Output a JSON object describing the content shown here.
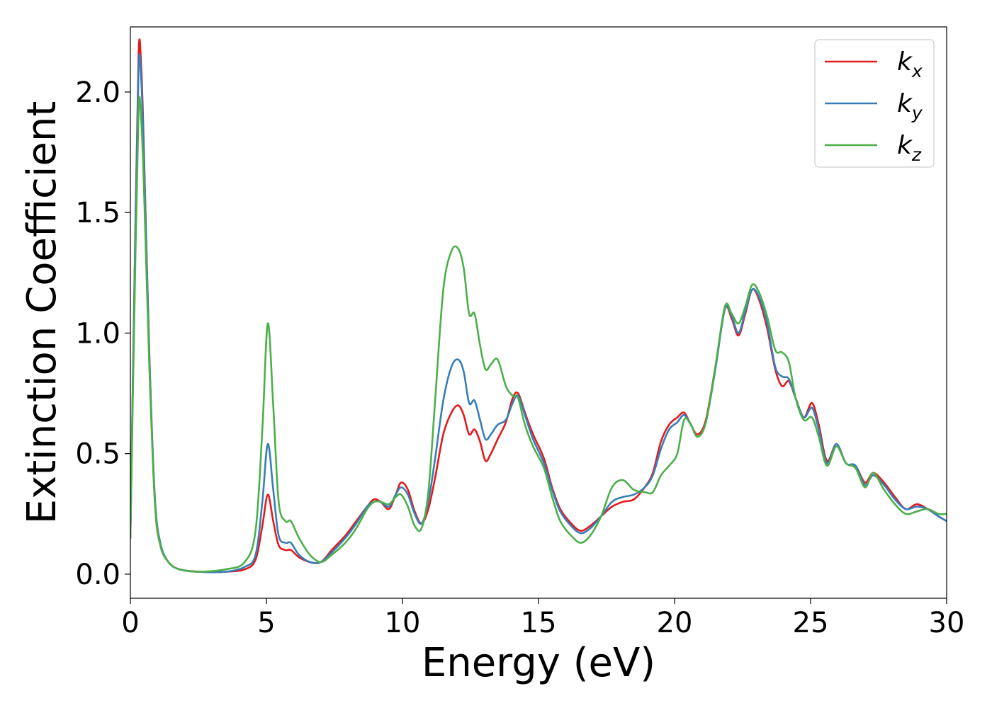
{
  "chart_data": {
    "type": "line",
    "title": "",
    "xlabel": "Energy (eV)",
    "ylabel": "Extinction Coefficient",
    "xlim": [
      0,
      30
    ],
    "ylim": [
      -0.1,
      2.27
    ],
    "xticks": [
      0,
      5,
      10,
      15,
      20,
      25,
      30
    ],
    "xtick_labels": [
      "0",
      "5",
      "10",
      "15",
      "20",
      "25",
      "30"
    ],
    "yticks": [
      0.0,
      0.5,
      1.0,
      1.5,
      2.0
    ],
    "ytick_labels": [
      "0.0",
      "0.5",
      "1.0",
      "1.5",
      "2.0"
    ],
    "grid": false,
    "legend_position": "top-right",
    "series": [
      {
        "name": "k_x",
        "label_base": "k",
        "label_sub": "x",
        "color": "#e41a1c",
        "points": [
          [
            0,
            0.15
          ],
          [
            0.15,
            1.2
          ],
          [
            0.3,
            2.15
          ],
          [
            0.4,
            2.1
          ],
          [
            0.5,
            1.75
          ],
          [
            0.7,
            0.9
          ],
          [
            0.9,
            0.3
          ],
          [
            1.1,
            0.12
          ],
          [
            1.4,
            0.05
          ],
          [
            1.8,
            0.02
          ],
          [
            2.5,
            0.01
          ],
          [
            3.5,
            0.01
          ],
          [
            4.2,
            0.02
          ],
          [
            4.6,
            0.06
          ],
          [
            4.85,
            0.2
          ],
          [
            5.05,
            0.33
          ],
          [
            5.25,
            0.22
          ],
          [
            5.45,
            0.12
          ],
          [
            5.7,
            0.1
          ],
          [
            5.9,
            0.1
          ],
          [
            6.2,
            0.07
          ],
          [
            6.6,
            0.05
          ],
          [
            7.0,
            0.05
          ],
          [
            7.4,
            0.1
          ],
          [
            7.9,
            0.16
          ],
          [
            8.3,
            0.22
          ],
          [
            8.7,
            0.28
          ],
          [
            8.95,
            0.31
          ],
          [
            9.2,
            0.3
          ],
          [
            9.5,
            0.27
          ],
          [
            9.75,
            0.33
          ],
          [
            9.95,
            0.38
          ],
          [
            10.2,
            0.35
          ],
          [
            10.45,
            0.26
          ],
          [
            10.7,
            0.21
          ],
          [
            10.95,
            0.27
          ],
          [
            11.2,
            0.4
          ],
          [
            11.5,
            0.58
          ],
          [
            11.8,
            0.67
          ],
          [
            12.05,
            0.7
          ],
          [
            12.25,
            0.66
          ],
          [
            12.45,
            0.58
          ],
          [
            12.65,
            0.6
          ],
          [
            12.85,
            0.55
          ],
          [
            13.05,
            0.47
          ],
          [
            13.25,
            0.5
          ],
          [
            13.5,
            0.56
          ],
          [
            13.8,
            0.63
          ],
          [
            14.05,
            0.73
          ],
          [
            14.25,
            0.75
          ],
          [
            14.5,
            0.67
          ],
          [
            14.8,
            0.58
          ],
          [
            15.2,
            0.48
          ],
          [
            15.5,
            0.36
          ],
          [
            15.8,
            0.27
          ],
          [
            16.2,
            0.21
          ],
          [
            16.55,
            0.18
          ],
          [
            16.9,
            0.2
          ],
          [
            17.3,
            0.24
          ],
          [
            17.7,
            0.28
          ],
          [
            18.1,
            0.3
          ],
          [
            18.5,
            0.31
          ],
          [
            18.9,
            0.36
          ],
          [
            19.2,
            0.42
          ],
          [
            19.5,
            0.55
          ],
          [
            19.8,
            0.62
          ],
          [
            20.1,
            0.65
          ],
          [
            20.35,
            0.67
          ],
          [
            20.6,
            0.62
          ],
          [
            20.85,
            0.58
          ],
          [
            21.15,
            0.64
          ],
          [
            21.5,
            0.86
          ],
          [
            21.85,
            1.1
          ],
          [
            22.1,
            1.06
          ],
          [
            22.35,
            0.99
          ],
          [
            22.6,
            1.08
          ],
          [
            22.85,
            1.18
          ],
          [
            23.1,
            1.14
          ],
          [
            23.4,
            1.02
          ],
          [
            23.7,
            0.85
          ],
          [
            23.95,
            0.78
          ],
          [
            24.2,
            0.8
          ],
          [
            24.45,
            0.73
          ],
          [
            24.75,
            0.65
          ],
          [
            25.05,
            0.71
          ],
          [
            25.3,
            0.62
          ],
          [
            25.6,
            0.47
          ],
          [
            25.95,
            0.54
          ],
          [
            26.3,
            0.46
          ],
          [
            26.65,
            0.45
          ],
          [
            27.0,
            0.38
          ],
          [
            27.3,
            0.42
          ],
          [
            27.7,
            0.38
          ],
          [
            28.1,
            0.32
          ],
          [
            28.5,
            0.27
          ],
          [
            28.9,
            0.29
          ],
          [
            29.3,
            0.27
          ],
          [
            29.7,
            0.24
          ],
          [
            30,
            0.22
          ]
        ]
      },
      {
        "name": "k_y",
        "label_base": "k",
        "label_sub": "y",
        "color": "#377eb8",
        "points": [
          [
            0,
            0.15
          ],
          [
            0.15,
            1.2
          ],
          [
            0.3,
            2.09
          ],
          [
            0.4,
            2.05
          ],
          [
            0.5,
            1.72
          ],
          [
            0.7,
            0.9
          ],
          [
            0.9,
            0.32
          ],
          [
            1.1,
            0.13
          ],
          [
            1.4,
            0.05
          ],
          [
            1.8,
            0.02
          ],
          [
            2.5,
            0.01
          ],
          [
            3.5,
            0.01
          ],
          [
            4.2,
            0.03
          ],
          [
            4.6,
            0.08
          ],
          [
            4.85,
            0.3
          ],
          [
            5.05,
            0.54
          ],
          [
            5.25,
            0.35
          ],
          [
            5.45,
            0.16
          ],
          [
            5.7,
            0.13
          ],
          [
            5.9,
            0.13
          ],
          [
            6.2,
            0.08
          ],
          [
            6.6,
            0.05
          ],
          [
            7.0,
            0.05
          ],
          [
            7.4,
            0.09
          ],
          [
            7.9,
            0.15
          ],
          [
            8.3,
            0.21
          ],
          [
            8.7,
            0.28
          ],
          [
            8.95,
            0.3
          ],
          [
            9.2,
            0.3
          ],
          [
            9.5,
            0.28
          ],
          [
            9.75,
            0.33
          ],
          [
            9.95,
            0.36
          ],
          [
            10.2,
            0.33
          ],
          [
            10.45,
            0.25
          ],
          [
            10.7,
            0.21
          ],
          [
            10.95,
            0.3
          ],
          [
            11.2,
            0.48
          ],
          [
            11.5,
            0.72
          ],
          [
            11.8,
            0.86
          ],
          [
            12.05,
            0.89
          ],
          [
            12.25,
            0.84
          ],
          [
            12.45,
            0.71
          ],
          [
            12.65,
            0.72
          ],
          [
            12.85,
            0.64
          ],
          [
            13.05,
            0.56
          ],
          [
            13.25,
            0.58
          ],
          [
            13.5,
            0.62
          ],
          [
            13.8,
            0.64
          ],
          [
            14.05,
            0.71
          ],
          [
            14.25,
            0.74
          ],
          [
            14.5,
            0.66
          ],
          [
            14.8,
            0.56
          ],
          [
            15.2,
            0.46
          ],
          [
            15.5,
            0.35
          ],
          [
            15.8,
            0.26
          ],
          [
            16.2,
            0.2
          ],
          [
            16.55,
            0.17
          ],
          [
            16.9,
            0.19
          ],
          [
            17.3,
            0.24
          ],
          [
            17.7,
            0.3
          ],
          [
            18.1,
            0.32
          ],
          [
            18.5,
            0.33
          ],
          [
            18.9,
            0.36
          ],
          [
            19.2,
            0.41
          ],
          [
            19.5,
            0.52
          ],
          [
            19.8,
            0.6
          ],
          [
            20.1,
            0.63
          ],
          [
            20.35,
            0.66
          ],
          [
            20.6,
            0.62
          ],
          [
            20.85,
            0.57
          ],
          [
            21.15,
            0.63
          ],
          [
            21.5,
            0.85
          ],
          [
            21.85,
            1.1
          ],
          [
            22.1,
            1.07
          ],
          [
            22.35,
            1.0
          ],
          [
            22.6,
            1.09
          ],
          [
            22.85,
            1.18
          ],
          [
            23.1,
            1.15
          ],
          [
            23.4,
            1.04
          ],
          [
            23.7,
            0.86
          ],
          [
            23.95,
            0.82
          ],
          [
            24.2,
            0.81
          ],
          [
            24.45,
            0.73
          ],
          [
            24.75,
            0.65
          ],
          [
            25.05,
            0.69
          ],
          [
            25.3,
            0.6
          ],
          [
            25.6,
            0.46
          ],
          [
            25.95,
            0.54
          ],
          [
            26.3,
            0.46
          ],
          [
            26.65,
            0.45
          ],
          [
            27.0,
            0.37
          ],
          [
            27.3,
            0.41
          ],
          [
            27.7,
            0.37
          ],
          [
            28.1,
            0.31
          ],
          [
            28.5,
            0.27
          ],
          [
            28.9,
            0.28
          ],
          [
            29.3,
            0.27
          ],
          [
            29.7,
            0.24
          ],
          [
            30,
            0.22
          ]
        ]
      },
      {
        "name": "k_z",
        "label_base": "k",
        "label_sub": "z",
        "color": "#4daf4a",
        "points": [
          [
            0,
            0.15
          ],
          [
            0.15,
            1.1
          ],
          [
            0.3,
            1.92
          ],
          [
            0.4,
            1.88
          ],
          [
            0.5,
            1.6
          ],
          [
            0.7,
            0.85
          ],
          [
            0.9,
            0.3
          ],
          [
            1.1,
            0.12
          ],
          [
            1.4,
            0.05
          ],
          [
            1.8,
            0.02
          ],
          [
            2.5,
            0.01
          ],
          [
            3.5,
            0.02
          ],
          [
            4.2,
            0.05
          ],
          [
            4.6,
            0.18
          ],
          [
            4.85,
            0.6
          ],
          [
            5.05,
            1.04
          ],
          [
            5.25,
            0.7
          ],
          [
            5.45,
            0.3
          ],
          [
            5.7,
            0.22
          ],
          [
            5.9,
            0.22
          ],
          [
            6.2,
            0.15
          ],
          [
            6.6,
            0.08
          ],
          [
            7.0,
            0.05
          ],
          [
            7.4,
            0.08
          ],
          [
            7.9,
            0.13
          ],
          [
            8.3,
            0.19
          ],
          [
            8.7,
            0.27
          ],
          [
            8.95,
            0.3
          ],
          [
            9.2,
            0.3
          ],
          [
            9.5,
            0.29
          ],
          [
            9.75,
            0.32
          ],
          [
            9.95,
            0.33
          ],
          [
            10.2,
            0.28
          ],
          [
            10.45,
            0.2
          ],
          [
            10.7,
            0.19
          ],
          [
            10.95,
            0.34
          ],
          [
            11.2,
            0.72
          ],
          [
            11.5,
            1.18
          ],
          [
            11.8,
            1.34
          ],
          [
            12.05,
            1.35
          ],
          [
            12.25,
            1.27
          ],
          [
            12.45,
            1.08
          ],
          [
            12.65,
            1.08
          ],
          [
            12.85,
            0.95
          ],
          [
            13.05,
            0.85
          ],
          [
            13.25,
            0.87
          ],
          [
            13.5,
            0.89
          ],
          [
            13.8,
            0.78
          ],
          [
            14.05,
            0.74
          ],
          [
            14.25,
            0.73
          ],
          [
            14.5,
            0.62
          ],
          [
            14.8,
            0.53
          ],
          [
            15.2,
            0.44
          ],
          [
            15.5,
            0.32
          ],
          [
            15.8,
            0.22
          ],
          [
            16.2,
            0.16
          ],
          [
            16.55,
            0.13
          ],
          [
            16.9,
            0.16
          ],
          [
            17.3,
            0.24
          ],
          [
            17.7,
            0.36
          ],
          [
            18.1,
            0.39
          ],
          [
            18.5,
            0.35
          ],
          [
            18.9,
            0.34
          ],
          [
            19.2,
            0.34
          ],
          [
            19.5,
            0.41
          ],
          [
            19.8,
            0.45
          ],
          [
            20.1,
            0.5
          ],
          [
            20.35,
            0.64
          ],
          [
            20.6,
            0.62
          ],
          [
            20.85,
            0.57
          ],
          [
            21.15,
            0.63
          ],
          [
            21.5,
            0.86
          ],
          [
            21.85,
            1.11
          ],
          [
            22.1,
            1.08
          ],
          [
            22.35,
            1.04
          ],
          [
            22.6,
            1.11
          ],
          [
            22.85,
            1.2
          ],
          [
            23.1,
            1.17
          ],
          [
            23.4,
            1.07
          ],
          [
            23.7,
            0.93
          ],
          [
            23.95,
            0.92
          ],
          [
            24.2,
            0.88
          ],
          [
            24.45,
            0.73
          ],
          [
            24.75,
            0.64
          ],
          [
            25.05,
            0.65
          ],
          [
            25.3,
            0.57
          ],
          [
            25.6,
            0.45
          ],
          [
            25.95,
            0.53
          ],
          [
            26.3,
            0.46
          ],
          [
            26.65,
            0.44
          ],
          [
            27.0,
            0.36
          ],
          [
            27.3,
            0.42
          ],
          [
            27.7,
            0.35
          ],
          [
            28.1,
            0.29
          ],
          [
            28.5,
            0.25
          ],
          [
            28.9,
            0.26
          ],
          [
            29.3,
            0.27
          ],
          [
            29.7,
            0.25
          ],
          [
            30,
            0.25
          ]
        ]
      }
    ]
  }
}
